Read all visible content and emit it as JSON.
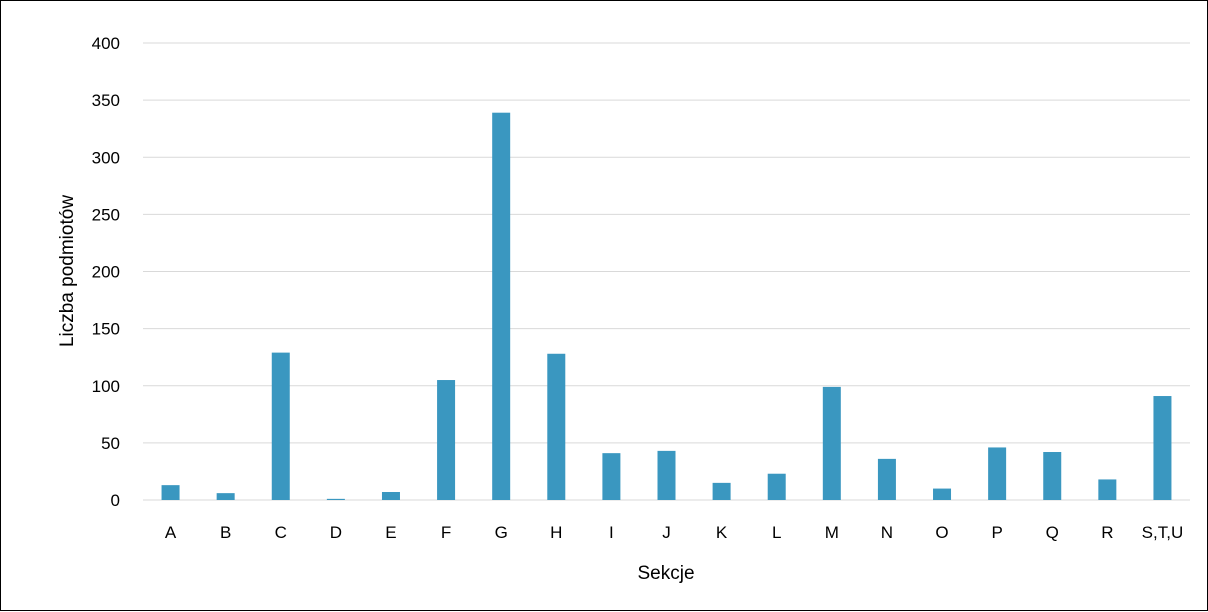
{
  "chart_data": {
    "type": "bar",
    "title": "",
    "xlabel": "Sekcje",
    "ylabel": "Liczba podmiotów",
    "categories": [
      "A",
      "B",
      "C",
      "D",
      "E",
      "F",
      "G",
      "H",
      "I",
      "J",
      "K",
      "L",
      "M",
      "N",
      "O",
      "P",
      "Q",
      "R",
      "S,T,U"
    ],
    "values": [
      13,
      6,
      129,
      1,
      7,
      105,
      339,
      128,
      41,
      43,
      15,
      23,
      99,
      36,
      10,
      46,
      42,
      18,
      91
    ],
    "ylim": [
      0,
      400
    ],
    "yticks": [
      "0",
      "50",
      "100",
      "150",
      "200",
      "250",
      "300",
      "350",
      "400"
    ],
    "grid": true,
    "legend": "none",
    "bar_color": "#3a97c0",
    "grid_color": "#d9d9d9"
  }
}
